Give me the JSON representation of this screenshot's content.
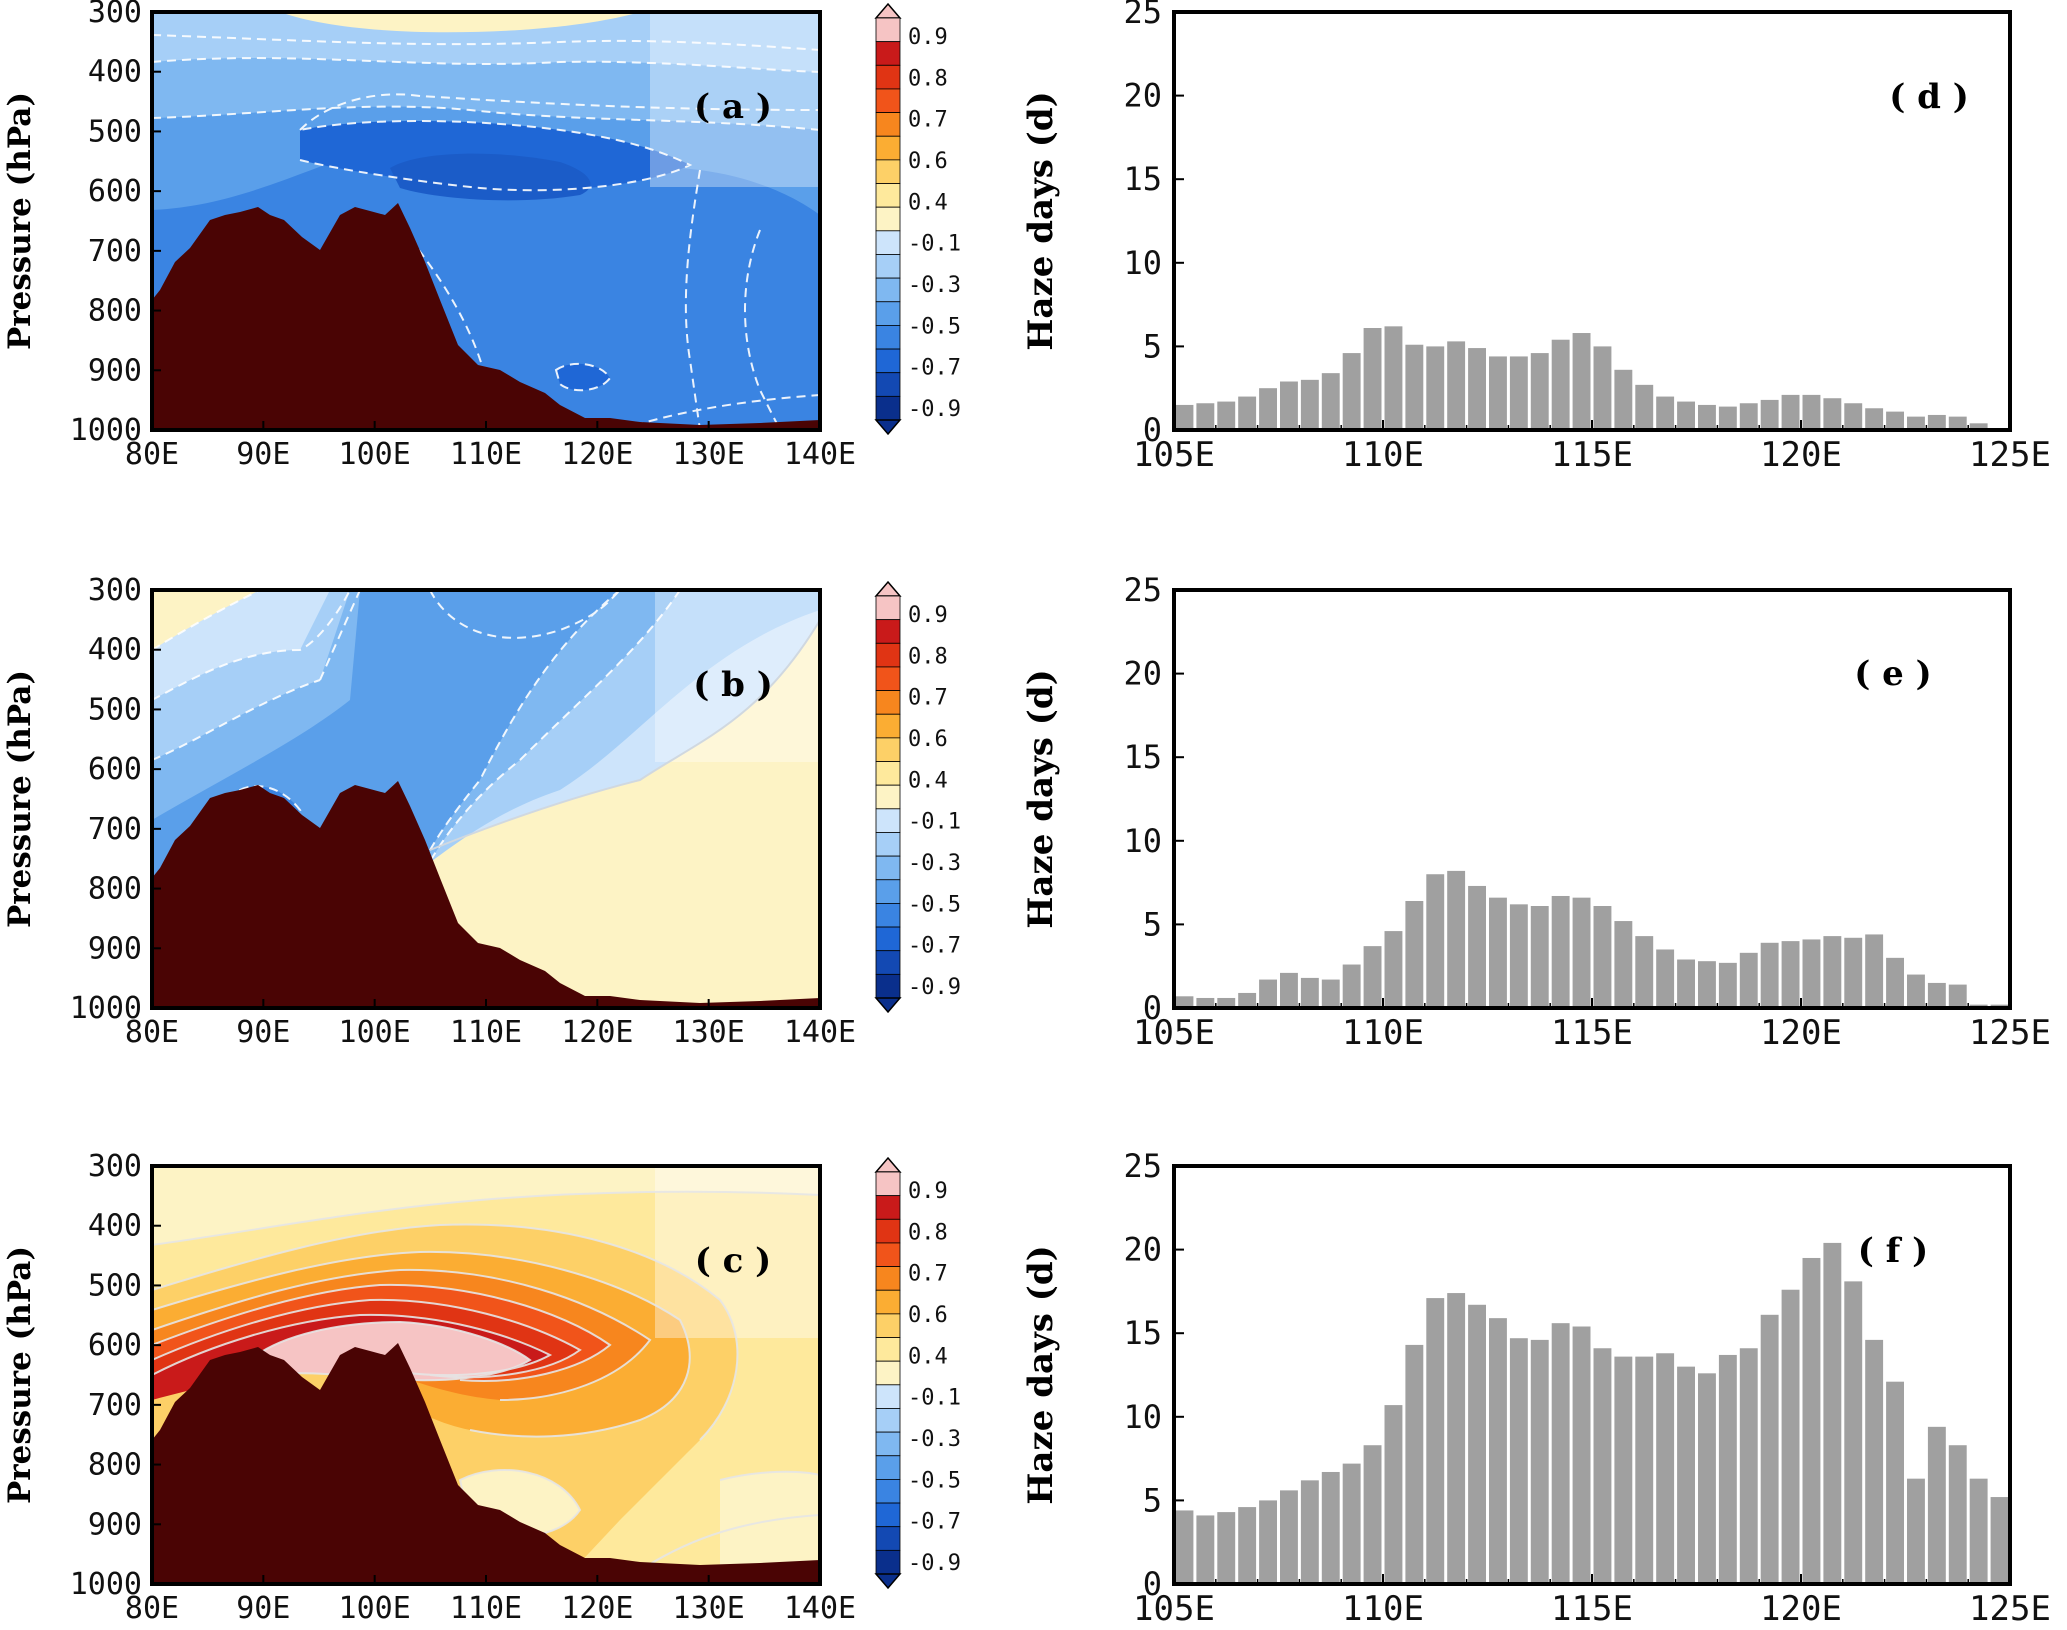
{
  "panels": {
    "a": {
      "label": "( a )"
    },
    "b": {
      "label": "( b )"
    },
    "c": {
      "label": "( c )"
    },
    "d": {
      "label": "( d )"
    },
    "e": {
      "label": "( e )"
    },
    "f": {
      "label": "( f )"
    }
  },
  "colors": {
    "terrain": "#4a0404",
    "bar": "#a0a0a0",
    "contour_dash": "#ffffff"
  },
  "chart_data": [
    {
      "id": "a",
      "type": "contour",
      "ylabel": "Pressure (hPa)",
      "x_ticks": [
        "80E",
        "90E",
        "100E",
        "110E",
        "120E",
        "130E",
        "140E"
      ],
      "y_ticks": [
        "300",
        "400",
        "500",
        "600",
        "700",
        "800",
        "900",
        "1000"
      ],
      "xlim": [
        80,
        140
      ],
      "ylim": [
        1000,
        300
      ]
    },
    {
      "id": "b",
      "type": "contour",
      "ylabel": "Pressure (hPa)",
      "x_ticks": [
        "80E",
        "90E",
        "100E",
        "110E",
        "120E",
        "130E",
        "140E"
      ],
      "y_ticks": [
        "300",
        "400",
        "500",
        "600",
        "700",
        "800",
        "900",
        "1000"
      ],
      "xlim": [
        80,
        140
      ],
      "ylim": [
        1000,
        300
      ]
    },
    {
      "id": "c",
      "type": "contour",
      "ylabel": "Pressure (hPa)",
      "x_ticks": [
        "80E",
        "90E",
        "100E",
        "110E",
        "120E",
        "130E",
        "140E"
      ],
      "y_ticks": [
        "300",
        "400",
        "500",
        "600",
        "700",
        "800",
        "900",
        "1000"
      ],
      "xlim": [
        80,
        140
      ],
      "ylim": [
        1000,
        300
      ]
    },
    {
      "id": "colorbar",
      "type": "colorbar",
      "levels": [
        "0.9",
        "0.8",
        "0.7",
        "0.6",
        "0.4",
        "-0.1",
        "-0.3",
        "-0.5",
        "-0.7",
        "-0.9"
      ],
      "colors": [
        "#f6c4c4",
        "#c91a1a",
        "#e03414",
        "#f1541a",
        "#f7861e",
        "#fbad33",
        "#fdd067",
        "#fee99c",
        "#fdf3c5",
        "#cde4fb",
        "#a6cff7",
        "#7fb8f1",
        "#5a9fea",
        "#3a84e2",
        "#1f67d6",
        "#1349b3",
        "#0a2f8c"
      ]
    },
    {
      "id": "d",
      "type": "bar",
      "ylabel": "Haze days (d)",
      "x_ticks": [
        "105E",
        "110E",
        "115E",
        "120E",
        "125E"
      ],
      "y_ticks": [
        "0",
        "5",
        "10",
        "15",
        "20",
        "25"
      ],
      "xlim": [
        105,
        125
      ],
      "ylim": [
        0,
        25
      ],
      "bin_start": 105,
      "bin_width": 0.5,
      "values": [
        1.5,
        1.6,
        1.7,
        2.0,
        2.5,
        2.9,
        3.0,
        3.4,
        4.6,
        6.1,
        6.2,
        5.1,
        5.0,
        5.3,
        4.9,
        4.4,
        4.4,
        4.6,
        5.4,
        5.8,
        5.0,
        3.6,
        2.7,
        2.0,
        1.7,
        1.5,
        1.4,
        1.6,
        1.8,
        2.1,
        2.1,
        1.9,
        1.6,
        1.3,
        1.1,
        0.8,
        0.9,
        0.8,
        0.4,
        0.1
      ]
    },
    {
      "id": "e",
      "type": "bar",
      "ylabel": "Haze days (d)",
      "x_ticks": [
        "105E",
        "110E",
        "115E",
        "120E",
        "125E"
      ],
      "y_ticks": [
        "0",
        "5",
        "10",
        "15",
        "20",
        "25"
      ],
      "xlim": [
        105,
        125
      ],
      "ylim": [
        0,
        25
      ],
      "bin_start": 105,
      "bin_width": 0.5,
      "values": [
        0.7,
        0.6,
        0.6,
        0.9,
        1.7,
        2.1,
        1.8,
        1.7,
        2.6,
        3.7,
        4.6,
        6.4,
        8.0,
        8.2,
        7.3,
        6.6,
        6.2,
        6.1,
        6.7,
        6.6,
        6.1,
        5.2,
        4.3,
        3.5,
        2.9,
        2.8,
        2.7,
        3.3,
        3.9,
        4.0,
        4.1,
        4.3,
        4.2,
        4.4,
        3.0,
        2.0,
        1.5,
        1.4,
        0.2,
        0.2
      ]
    },
    {
      "id": "f",
      "type": "bar",
      "ylabel": "Haze days (d)",
      "x_ticks": [
        "105E",
        "110E",
        "115E",
        "120E",
        "125E"
      ],
      "y_ticks": [
        "0",
        "5",
        "10",
        "15",
        "20",
        "25"
      ],
      "xlim": [
        105,
        125
      ],
      "ylim": [
        0,
        25
      ],
      "bin_start": 105,
      "bin_width": 0.5,
      "values": [
        4.4,
        4.1,
        4.3,
        4.6,
        5.0,
        5.6,
        6.2,
        6.7,
        7.2,
        8.3,
        10.7,
        14.3,
        17.1,
        17.4,
        16.7,
        15.9,
        14.7,
        14.6,
        15.6,
        15.4,
        14.1,
        13.6,
        13.6,
        13.8,
        13.0,
        12.6,
        13.7,
        14.1,
        16.1,
        17.6,
        19.5,
        20.4,
        18.1,
        14.6,
        12.1,
        6.3,
        9.4,
        8.3,
        6.3,
        5.2
      ]
    }
  ]
}
